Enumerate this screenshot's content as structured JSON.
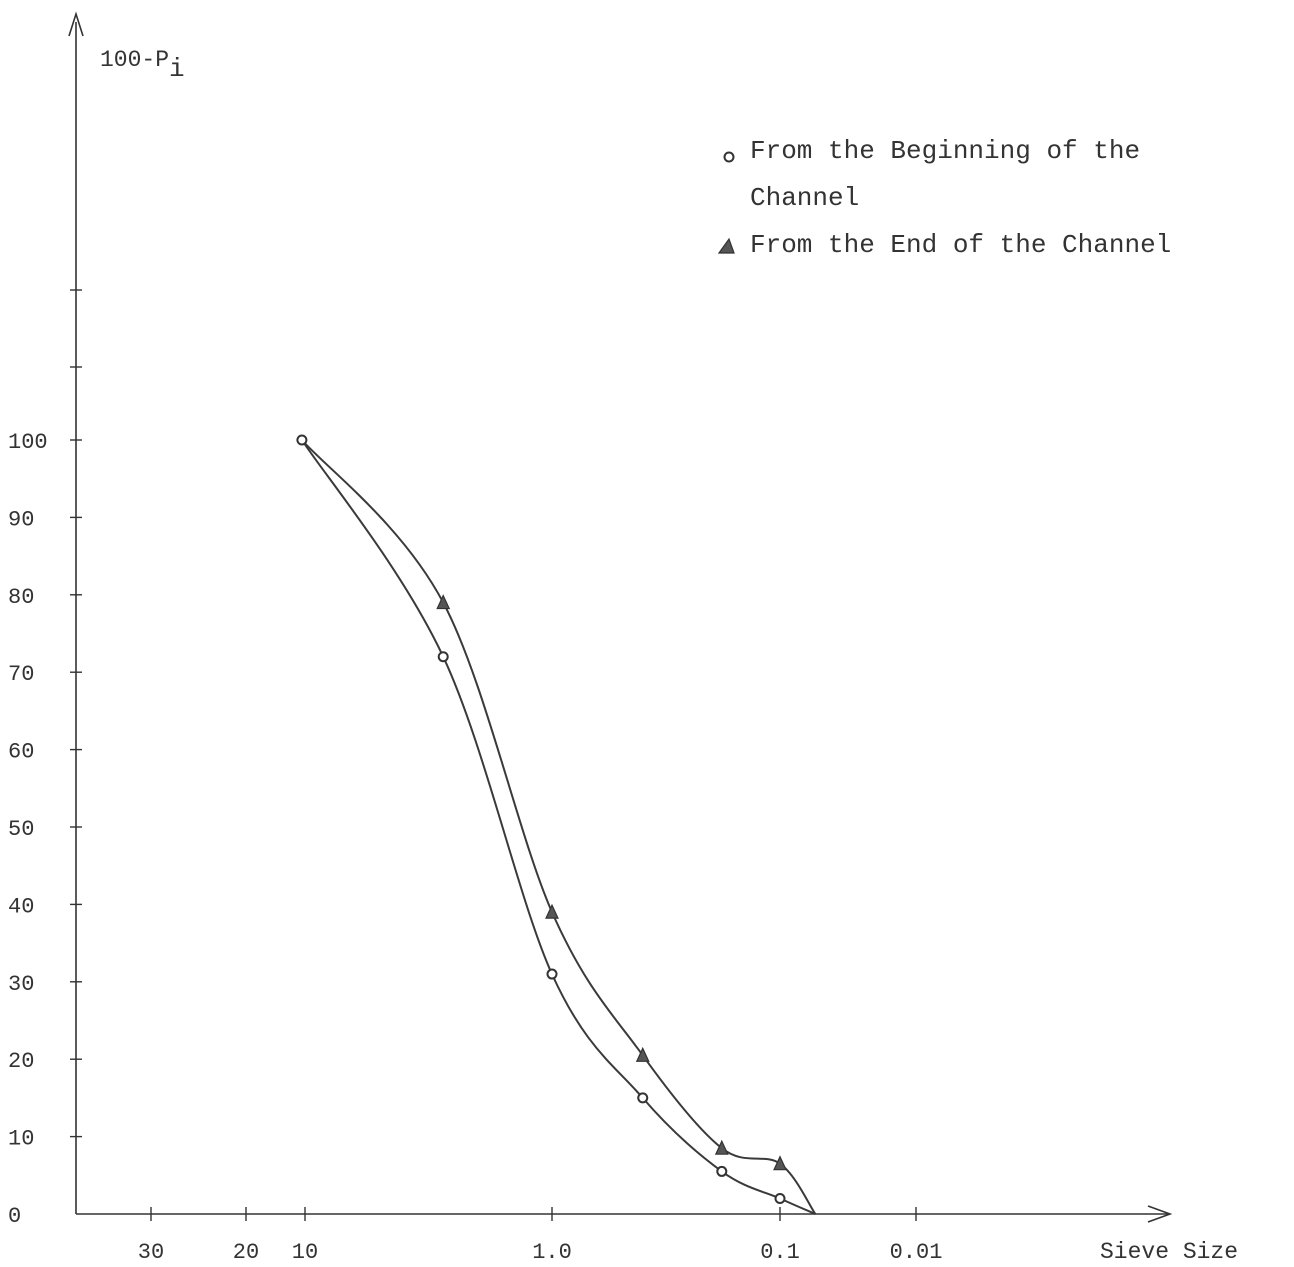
{
  "chart_data": {
    "type": "line",
    "ylabel": "100-P",
    "ylabel_subscript": "i",
    "xlabel": "Sieve Size",
    "x_scale": "log",
    "x_direction": "reversed",
    "x_tick_labels": [
      "30",
      "20",
      "10",
      "1.0",
      "0.1",
      "0.01"
    ],
    "x_tick_values": [
      30,
      20,
      10,
      1.0,
      0.1,
      0.01
    ],
    "y_tick_labels": [
      "0",
      "10",
      "20",
      "30",
      "40",
      "50",
      "60",
      "70",
      "80",
      "90",
      "100"
    ],
    "y_tick_values": [
      0,
      10,
      20,
      30,
      40,
      50,
      60,
      70,
      80,
      90,
      100
    ],
    "ylim": [
      0,
      150
    ],
    "grid": false,
    "legend_position": "top-right",
    "series": [
      {
        "name": "From the Beginning of the Channel",
        "marker": "circle",
        "x": [
          12.5,
          3.0,
          1.0,
          0.4,
          0.18,
          0.1,
          0.07
        ],
        "y": [
          100,
          72,
          31,
          15,
          5.5,
          2,
          0
        ]
      },
      {
        "name": "From the End of the Channel",
        "marker": "triangle",
        "x": [
          12.5,
          3.0,
          1.0,
          0.4,
          0.18,
          0.1,
          0.07
        ],
        "y": [
          100,
          79,
          39,
          20.5,
          8.5,
          6.5,
          0
        ]
      }
    ],
    "legend": {
      "beginning_line1": "From the Beginning of the",
      "beginning_line2": "Channel",
      "end_line": "From the End of the Channel"
    }
  }
}
